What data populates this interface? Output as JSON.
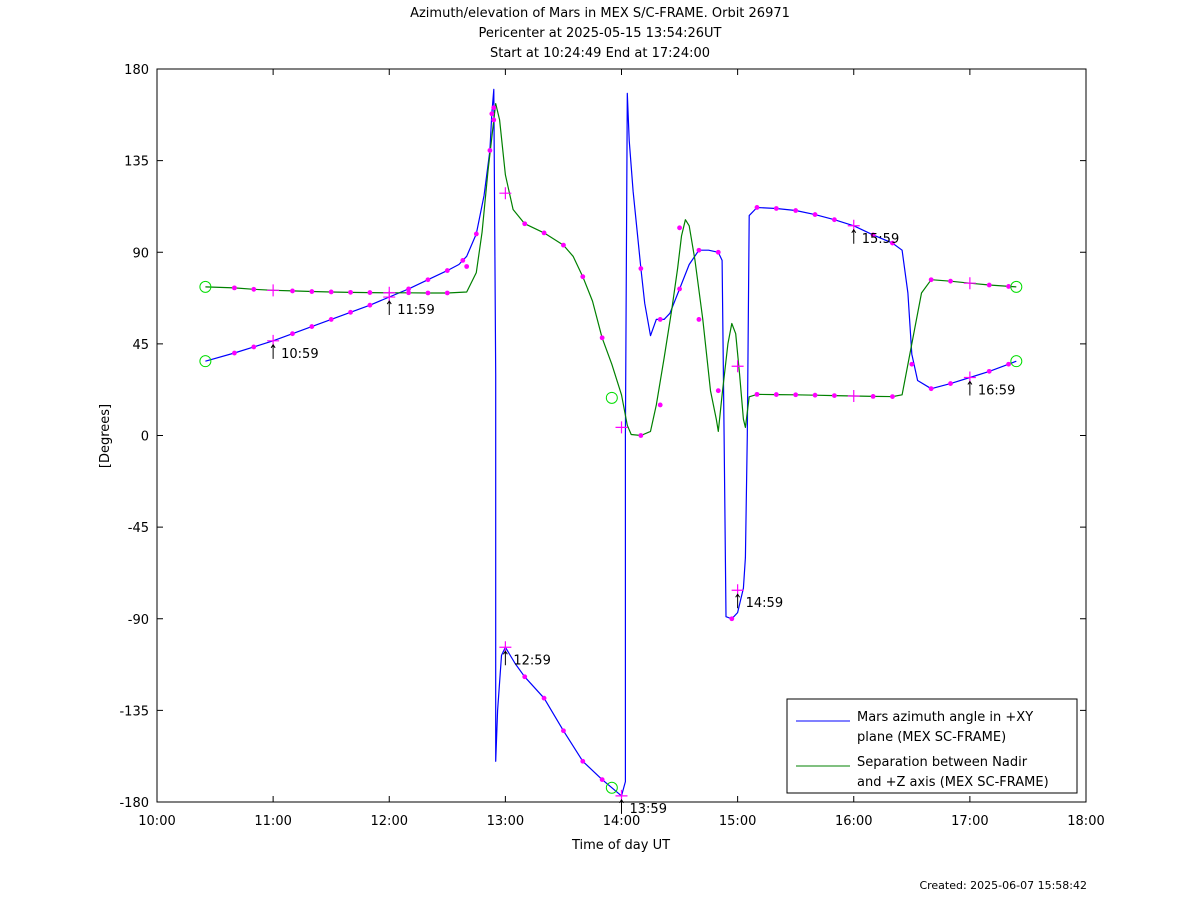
{
  "colors": {
    "azimuth": "#0000ff",
    "separation": "#008000",
    "marker": "#ff00ff",
    "circle": "#00dd00"
  },
  "chart_data": {
    "type": "line",
    "title_lines": [
      "Azimuth/elevation of Mars in MEX S/C-FRAME.  Orbit 26971",
      "Pericenter at 2025-05-15 13:54:26UT",
      "Start at 10:24:49 End at 17:24:00"
    ],
    "xlabel": "Time of day UT",
    "ylabel": "[Degrees]",
    "xlim": [
      "10:00",
      "18:00"
    ],
    "ylim": [
      -180,
      180
    ],
    "x_ticks": [
      "10:00",
      "11:00",
      "12:00",
      "13:00",
      "14:00",
      "15:00",
      "16:00",
      "17:00",
      "18:00"
    ],
    "y_ticks": [
      180,
      135,
      90,
      45,
      0,
      -45,
      -90,
      -135,
      -180
    ],
    "grid": false,
    "legend_position": "bottom-right",
    "series": [
      {
        "name": "Mars azimuth angle in +XY plane (MEX SC-FRAME)",
        "legend_lines": [
          "Mars azimuth angle in +XY",
          "plane (MEX SC-FRAME)"
        ],
        "color_key": "azimuth",
        "points": [
          [
            "10:25",
            36.5
          ],
          [
            "10:40",
            40.5
          ],
          [
            "10:50",
            43.5
          ],
          [
            "11:00",
            46.5
          ],
          [
            "11:10",
            50
          ],
          [
            "11:20",
            53.5
          ],
          [
            "11:30",
            57
          ],
          [
            "11:40",
            60.5
          ],
          [
            "11:50",
            64
          ],
          [
            "12:00",
            68
          ],
          [
            "12:10",
            72
          ],
          [
            "12:20",
            76.5
          ],
          [
            "12:30",
            81
          ],
          [
            "12:36",
            84
          ],
          [
            "12:40",
            88
          ],
          [
            "12:45",
            99
          ],
          [
            "12:49",
            118
          ],
          [
            "12:52",
            140
          ],
          [
            "12:53",
            158
          ],
          [
            "12:54",
            170
          ],
          [
            "12:55",
            30
          ],
          [
            "12:55",
            -160
          ],
          [
            "12:56",
            -135
          ],
          [
            "12:58",
            -108
          ],
          [
            "13:00",
            -104
          ],
          [
            "13:05",
            -112
          ],
          [
            "13:10",
            -118.5
          ],
          [
            "13:20",
            -129
          ],
          [
            "13:30",
            -145
          ],
          [
            "13:40",
            -160
          ],
          [
            "13:50",
            -169
          ],
          [
            "13:55",
            -173
          ],
          [
            "14:00",
            -177
          ],
          [
            "14:02",
            -170
          ],
          [
            "14:02",
            0
          ],
          [
            "14:03",
            168
          ],
          [
            "14:04",
            145
          ],
          [
            "14:06",
            120
          ],
          [
            "14:10",
            82
          ],
          [
            "14:12",
            65
          ],
          [
            "14:15",
            49
          ],
          [
            "14:18",
            57
          ],
          [
            "14:22",
            57
          ],
          [
            "14:25",
            60
          ],
          [
            "14:30",
            72
          ],
          [
            "14:35",
            84
          ],
          [
            "14:40",
            91
          ],
          [
            "14:45",
            91
          ],
          [
            "14:50",
            90
          ],
          [
            "14:52",
            86
          ],
          [
            "14:53",
            0
          ],
          [
            "14:54",
            -89
          ],
          [
            "14:57",
            -90
          ],
          [
            "15:00",
            -87
          ],
          [
            "15:03",
            -75
          ],
          [
            "15:04",
            -60
          ],
          [
            "15:05",
            0
          ],
          [
            "15:06",
            108
          ],
          [
            "15:10",
            112
          ],
          [
            "15:20",
            111.5
          ],
          [
            "15:30",
            110.5
          ],
          [
            "15:40",
            108.5
          ],
          [
            "15:50",
            106
          ],
          [
            "16:00",
            103
          ],
          [
            "16:10",
            98.5
          ],
          [
            "16:20",
            94.5
          ],
          [
            "16:25",
            91
          ],
          [
            "16:28",
            70
          ],
          [
            "16:30",
            40
          ],
          [
            "16:33",
            27
          ],
          [
            "16:40",
            23
          ],
          [
            "16:50",
            25.5
          ],
          [
            "17:00",
            28.5
          ],
          [
            "17:10",
            31.5
          ],
          [
            "17:20",
            35
          ],
          [
            "17:24",
            36.5
          ]
        ]
      },
      {
        "name": "Separation between Nadir and +Z axis (MEX SC-FRAME)",
        "legend_lines": [
          "Separation between Nadir",
          "and +Z axis (MEX SC-FRAME)"
        ],
        "color_key": "separation",
        "points": [
          [
            "10:25",
            73
          ],
          [
            "10:40",
            72.5
          ],
          [
            "10:50",
            71.8
          ],
          [
            "11:00",
            71.3
          ],
          [
            "11:10",
            71
          ],
          [
            "11:20",
            70.7
          ],
          [
            "11:30",
            70.5
          ],
          [
            "11:40",
            70.3
          ],
          [
            "11:50",
            70.2
          ],
          [
            "12:00",
            70.1
          ],
          [
            "12:10",
            70.1
          ],
          [
            "12:20",
            70
          ],
          [
            "12:30",
            70
          ],
          [
            "12:40",
            70.5
          ],
          [
            "12:45",
            80
          ],
          [
            "12:48",
            100
          ],
          [
            "12:51",
            130
          ],
          [
            "12:54",
            155
          ],
          [
            "12:55",
            163
          ],
          [
            "12:57",
            155
          ],
          [
            "13:00",
            128
          ],
          [
            "13:04",
            111
          ],
          [
            "13:10",
            104
          ],
          [
            "13:20",
            99.5
          ],
          [
            "13:30",
            93.5
          ],
          [
            "13:35",
            88
          ],
          [
            "13:40",
            78
          ],
          [
            "13:45",
            66
          ],
          [
            "13:50",
            48
          ],
          [
            "13:55",
            35
          ],
          [
            "14:00",
            20
          ],
          [
            "14:03",
            5
          ],
          [
            "14:05",
            0.5
          ],
          [
            "14:10",
            0
          ],
          [
            "14:15",
            2
          ],
          [
            "14:18",
            15
          ],
          [
            "14:22",
            38
          ],
          [
            "14:26",
            62
          ],
          [
            "14:29",
            82
          ],
          [
            "14:31",
            98
          ],
          [
            "14:33",
            106
          ],
          [
            "14:35",
            103
          ],
          [
            "14:38",
            86
          ],
          [
            "14:42",
            57
          ],
          [
            "14:46",
            22
          ],
          [
            "14:49",
            8
          ],
          [
            "14:50",
            2
          ],
          [
            "14:52",
            20
          ],
          [
            "14:55",
            45
          ],
          [
            "14:57",
            55
          ],
          [
            "14:59",
            50
          ],
          [
            "15:01",
            30
          ],
          [
            "15:03",
            8
          ],
          [
            "15:04",
            4
          ],
          [
            "15:06",
            19
          ],
          [
            "15:10",
            20.2
          ],
          [
            "15:20",
            20.1
          ],
          [
            "15:30",
            20
          ],
          [
            "15:40",
            19.8
          ],
          [
            "15:50",
            19.6
          ],
          [
            "16:00",
            19.4
          ],
          [
            "16:10",
            19.2
          ],
          [
            "16:20",
            19.1
          ],
          [
            "16:25",
            20
          ],
          [
            "16:30",
            45
          ],
          [
            "16:35",
            70
          ],
          [
            "16:40",
            76.5
          ],
          [
            "16:50",
            75.8
          ],
          [
            "17:00",
            74.8
          ],
          [
            "17:10",
            73.9
          ],
          [
            "17:24",
            73
          ]
        ]
      }
    ],
    "markers": {
      "dots_azimuth": [
        [
          "10:40",
          40.5
        ],
        [
          "10:50",
          43.5
        ],
        [
          "11:10",
          50
        ],
        [
          "11:20",
          53.5
        ],
        [
          "11:30",
          57
        ],
        [
          "11:40",
          60.5
        ],
        [
          "11:50",
          64
        ],
        [
          "12:10",
          72
        ],
        [
          "12:20",
          76.5
        ],
        [
          "12:30",
          81
        ],
        [
          "12:38",
          86
        ],
        [
          "12:45",
          99
        ],
        [
          "12:52",
          140
        ],
        [
          "12:53",
          158
        ],
        [
          "13:10",
          -118.5
        ],
        [
          "13:20",
          -129
        ],
        [
          "13:30",
          -145
        ],
        [
          "13:40",
          -160
        ],
        [
          "13:50",
          -169
        ],
        [
          "14:10",
          82
        ],
        [
          "14:20",
          57
        ],
        [
          "14:30",
          72
        ],
        [
          "14:40",
          91
        ],
        [
          "14:50",
          90
        ],
        [
          "14:57",
          -90
        ],
        [
          "15:10",
          112
        ],
        [
          "15:20",
          111.5
        ],
        [
          "15:30",
          110.5
        ],
        [
          "15:40",
          108.5
        ],
        [
          "15:50",
          106
        ],
        [
          "16:10",
          98.5
        ],
        [
          "16:20",
          94.5
        ],
        [
          "16:40",
          23
        ],
        [
          "16:50",
          25.5
        ],
        [
          "17:10",
          31.5
        ],
        [
          "17:20",
          35
        ]
      ],
      "dots_separation": [
        [
          "10:40",
          72.5
        ],
        [
          "10:50",
          71.8
        ],
        [
          "11:10",
          71
        ],
        [
          "11:20",
          70.7
        ],
        [
          "11:30",
          70.5
        ],
        [
          "11:40",
          70.3
        ],
        [
          "11:50",
          70.2
        ],
        [
          "12:10",
          70.1
        ],
        [
          "12:20",
          70
        ],
        [
          "12:30",
          70
        ],
        [
          "12:40",
          83
        ],
        [
          "12:54",
          155
        ],
        [
          "12:54",
          161
        ],
        [
          "13:10",
          104
        ],
        [
          "13:20",
          99.5
        ],
        [
          "13:30",
          93.5
        ],
        [
          "13:40",
          78
        ],
        [
          "13:50",
          48
        ],
        [
          "14:10",
          0
        ],
        [
          "14:20",
          15
        ],
        [
          "14:30",
          102
        ],
        [
          "14:40",
          57
        ],
        [
          "14:50",
          22
        ],
        [
          "15:10",
          20.2
        ],
        [
          "15:20",
          20.1
        ],
        [
          "15:30",
          20
        ],
        [
          "15:40",
          19.8
        ],
        [
          "15:50",
          19.6
        ],
        [
          "16:10",
          19.2
        ],
        [
          "16:20",
          19.1
        ],
        [
          "16:30",
          35
        ],
        [
          "16:40",
          76.5
        ],
        [
          "16:50",
          75.8
        ],
        [
          "17:10",
          73.9
        ],
        [
          "17:20",
          73.2
        ]
      ],
      "crosses": [
        [
          "11:00",
          46.5
        ],
        [
          "11:00",
          71.3
        ],
        [
          "12:00",
          68
        ],
        [
          "12:00",
          70.1
        ],
        [
          "13:00",
          -104
        ],
        [
          "13:00",
          119
        ],
        [
          "14:00",
          -177
        ],
        [
          "14:00",
          4
        ],
        [
          "15:00",
          -76
        ],
        [
          "15:00",
          34
        ],
        [
          "16:00",
          103
        ],
        [
          "16:00",
          19.4
        ],
        [
          "17:00",
          28.5
        ],
        [
          "17:00",
          74.8
        ]
      ],
      "circles": [
        [
          "10:25",
          36.5
        ],
        [
          "10:25",
          73
        ],
        [
          "13:55",
          -173
        ],
        [
          "13:55",
          18.5
        ],
        [
          "17:24",
          36.5
        ],
        [
          "17:24",
          73
        ]
      ]
    },
    "annotations": [
      {
        "text": "10:59",
        "x": "11:00",
        "y": 46.5
      },
      {
        "text": "11:59",
        "x": "12:00",
        "y": 68
      },
      {
        "text": "12:59",
        "x": "13:00",
        "y": -104
      },
      {
        "text": "13:59",
        "x": "14:00",
        "y": -177
      },
      {
        "text": "14:59",
        "x": "15:00",
        "y": -76
      },
      {
        "text": "15:59",
        "x": "16:00",
        "y": 103
      },
      {
        "text": "16:59",
        "x": "17:00",
        "y": 28.5
      }
    ]
  },
  "footer": {
    "created": "Created: 2025-06-07 15:58:42"
  }
}
